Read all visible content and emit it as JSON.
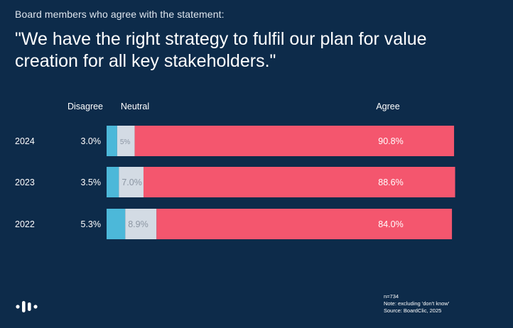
{
  "subtitle": "Board members who agree with the statement:",
  "title": "\"We have the right strategy to fulfil our plan for value creation for all key stakeholders.\"",
  "colors": {
    "background": "#0d2b4a",
    "disagree": "#4cb8d9",
    "neutral": "#d3dbe4",
    "agree": "#f4566e"
  },
  "chart_data": {
    "type": "bar",
    "orientation": "horizontal",
    "stacked": true,
    "categories": [
      "2024",
      "2023",
      "2022"
    ],
    "series": [
      {
        "name": "Disagree",
        "values": [
          3.0,
          3.5,
          5.3
        ],
        "labels": [
          "3.0%",
          "3.5%",
          "5.3%"
        ]
      },
      {
        "name": "Neutral",
        "values": [
          5.0,
          7.0,
          8.9
        ],
        "labels": [
          "5%",
          "7.0%",
          "8.9%"
        ]
      },
      {
        "name": "Agree",
        "values": [
          90.8,
          88.6,
          84.0
        ],
        "labels": [
          "90.8%",
          "88.6%",
          "84.0%"
        ]
      }
    ],
    "xlim": [
      0,
      100
    ]
  },
  "notes": {
    "n": "n=734",
    "note": "Note: excluding 'don't know'",
    "source": "Source: BoardClic, 2025"
  }
}
